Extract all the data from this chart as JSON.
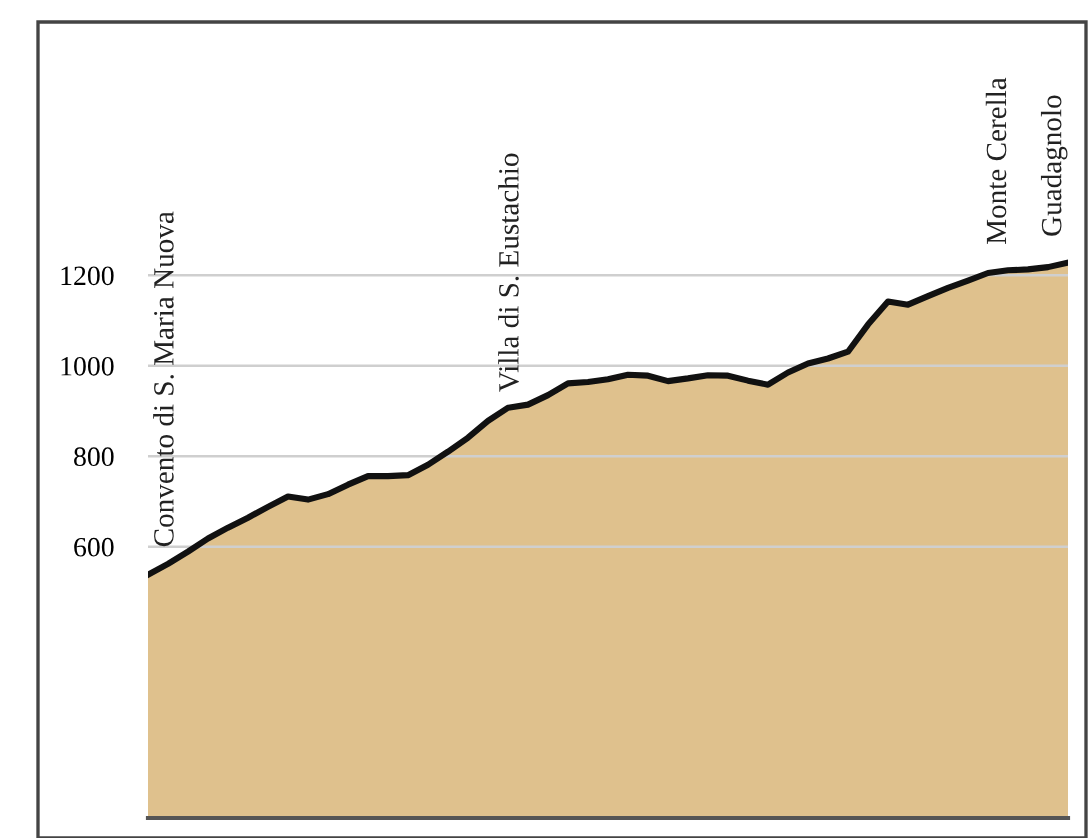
{
  "chart_data": {
    "type": "area",
    "categories": [
      null,
      null,
      null,
      null,
      null,
      null,
      null,
      null,
      null,
      null,
      null,
      null,
      null,
      null,
      null,
      null,
      null,
      null,
      null,
      null,
      null,
      null,
      null,
      null,
      null,
      null,
      null,
      null,
      null,
      null,
      null,
      null,
      null,
      null,
      null,
      null,
      null,
      null,
      null,
      null,
      null,
      null,
      null,
      null,
      null,
      null,
      null
    ],
    "series": [
      {
        "color": "#dfc18d",
        "values": [
          538,
          562,
          589,
          618,
          642,
          664,
          688,
          711,
          704,
          716,
          737,
          756,
          756,
          758,
          781,
          810,
          841,
          878,
          907,
          914,
          935,
          961,
          964,
          970,
          980,
          978,
          966,
          972,
          979,
          978,
          967,
          958,
          985,
          1005,
          1016,
          1031,
          1091,
          1142,
          1135,
          1154,
          1172,
          1188,
          1205,
          1211,
          1213,
          1218,
          1228
        ]
      }
    ],
    "ylim": [
      0,
      1760
    ],
    "yticks": [
      600,
      800,
      1000,
      1200
    ],
    "grid": "y",
    "tick_labels": "y",
    "annotations": [
      "Convento di S. Maria Nuova",
      "Villa di S. Eustachio",
      "Monte Cerella",
      "Guadagnolo"
    ]
  }
}
